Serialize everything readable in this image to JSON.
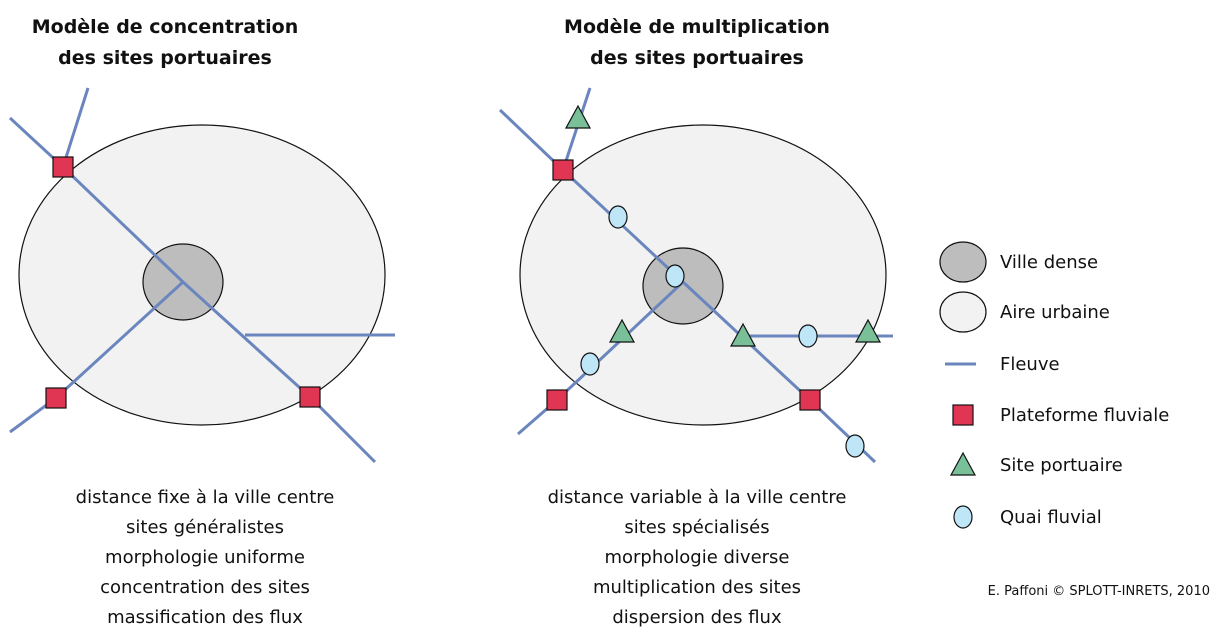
{
  "left": {
    "title": [
      "Modèle de concentration",
      "des sites portuaires"
    ],
    "description": [
      "distance fixe à la ville centre",
      "sites généralistes",
      "morphologie uniforme",
      "concentration des sites",
      "massification des flux"
    ]
  },
  "right": {
    "title": [
      "Modèle de multiplication",
      "des sites portuaires"
    ],
    "description": [
      "distance variable à la ville centre",
      "sites spécialisés",
      "morphologie diverse",
      "multiplication des sites",
      "dispersion des flux"
    ]
  },
  "legend": [
    "Ville dense",
    "Aire urbaine",
    "Fleuve",
    "Plateforme fluviale",
    "Site portuaire",
    "Quai fluvial"
  ],
  "credit": "E. Paffoni © SPLOTT-INRETS, 2010"
}
